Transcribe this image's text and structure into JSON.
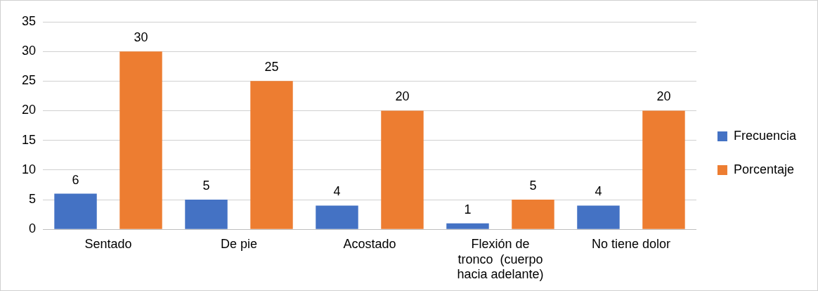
{
  "chart_data": {
    "type": "bar",
    "categories": [
      "Sentado",
      "De pie",
      "Acostado",
      "Flexión de tronco  (cuerpo hacia adelante)",
      "No tiene dolor"
    ],
    "series": [
      {
        "name": "Frecuencia",
        "color": "#4472c4",
        "values": [
          6,
          5,
          4,
          1,
          4
        ]
      },
      {
        "name": "Porcentaje",
        "color": "#ed7d31",
        "values": [
          30,
          25,
          20,
          5,
          20
        ]
      }
    ],
    "ylim": [
      0,
      35
    ],
    "yticks": [
      0,
      5,
      10,
      15,
      20,
      25,
      30,
      35
    ],
    "grid": "y",
    "legend": "right",
    "data_labels": true
  }
}
